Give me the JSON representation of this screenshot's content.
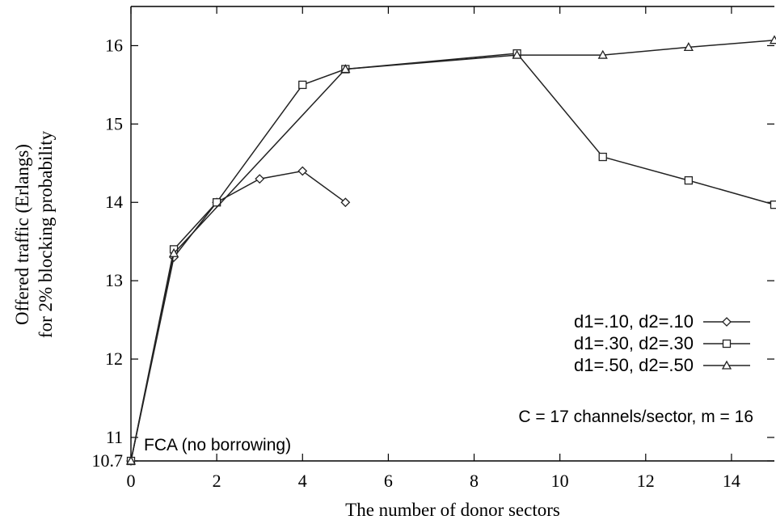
{
  "chart_data": {
    "type": "line",
    "xlabel": "The number of donor sectors",
    "ylabel": [
      "Offered traffic (Erlangs)",
      "for 2% blocking probability"
    ],
    "xlim": [
      0,
      15
    ],
    "ylim": [
      10.7,
      16.5
    ],
    "xticks": [
      0,
      2,
      4,
      6,
      8,
      10,
      12,
      14
    ],
    "yticks": [
      10.7,
      11,
      12,
      13,
      14,
      15,
      16
    ],
    "yticks_label": [
      "10.7",
      "11",
      "12",
      "13",
      "14",
      "15",
      "16"
    ],
    "grid": false,
    "legend_position": "right",
    "series": [
      {
        "name": "d1=.10, d2=.10",
        "marker": "diamond",
        "points": [
          [
            0,
            10.7
          ],
          [
            1,
            13.3
          ],
          [
            2,
            14.0
          ],
          [
            3,
            14.3
          ],
          [
            4,
            14.4
          ],
          [
            5,
            14.0
          ]
        ]
      },
      {
        "name": "d1=.30, d2=.30",
        "marker": "square",
        "points": [
          [
            0,
            10.7
          ],
          [
            1,
            13.4
          ],
          [
            2,
            14.0
          ],
          [
            4,
            15.5
          ],
          [
            5,
            15.7
          ],
          [
            9,
            15.9
          ],
          [
            11,
            14.58
          ],
          [
            13,
            14.28
          ],
          [
            15,
            13.97
          ]
        ]
      },
      {
        "name": "d1=.50, d2=.50",
        "marker": "triangle",
        "points": [
          [
            0,
            10.7
          ],
          [
            1,
            13.35
          ],
          [
            5,
            15.7
          ],
          [
            9,
            15.88
          ],
          [
            11,
            15.88
          ],
          [
            13,
            15.98
          ],
          [
            15,
            16.07
          ]
        ]
      }
    ],
    "annotations": {
      "fca_label": "FCA (no borrowing)",
      "params": "C = 17 channels/sector, m = 16"
    }
  }
}
